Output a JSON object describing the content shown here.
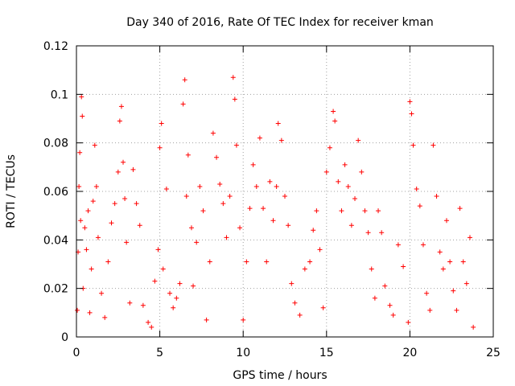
{
  "chart_data": {
    "type": "scatter",
    "title": "Day 340 of 2016, Rate Of TEC Index for receiver kman",
    "xlabel": "GPS time / hours",
    "ylabel": "ROTI / TECUs",
    "xlim": [
      0,
      25
    ],
    "ylim": [
      0,
      0.12
    ],
    "xticks": [
      0,
      5,
      10,
      15,
      20,
      25
    ],
    "xtick_labels": [
      "0",
      "5",
      "10",
      "15",
      "20",
      "25"
    ],
    "yticks": [
      0,
      0.02,
      0.04,
      0.06,
      0.08,
      0.1,
      0.12
    ],
    "ytick_labels": [
      "0",
      "0.02",
      "0.04",
      "0.06",
      "0.08",
      "0.1",
      "0.12"
    ],
    "grid": true,
    "marker": "+",
    "series": [
      {
        "color": "#ff0000",
        "points": [
          [
            0.05,
            0.011
          ],
          [
            0.1,
            0.035
          ],
          [
            0.15,
            0.062
          ],
          [
            0.2,
            0.076
          ],
          [
            0.25,
            0.048
          ],
          [
            0.3,
            0.099
          ],
          [
            0.35,
            0.091
          ],
          [
            0.4,
            0.02
          ],
          [
            0.5,
            0.045
          ],
          [
            0.6,
            0.036
          ],
          [
            0.7,
            0.052
          ],
          [
            0.8,
            0.01
          ],
          [
            0.9,
            0.028
          ],
          [
            1.0,
            0.056
          ],
          [
            1.1,
            0.079
          ],
          [
            1.2,
            0.062
          ],
          [
            1.3,
            0.041
          ],
          [
            1.5,
            0.018
          ],
          [
            1.7,
            0.008
          ],
          [
            1.9,
            0.031
          ],
          [
            2.1,
            0.047
          ],
          [
            2.3,
            0.055
          ],
          [
            2.5,
            0.068
          ],
          [
            2.6,
            0.089
          ],
          [
            2.7,
            0.095
          ],
          [
            2.8,
            0.072
          ],
          [
            2.9,
            0.057
          ],
          [
            3.0,
            0.039
          ],
          [
            3.2,
            0.014
          ],
          [
            3.4,
            0.069
          ],
          [
            3.6,
            0.055
          ],
          [
            3.8,
            0.046
          ],
          [
            4.0,
            0.013
          ],
          [
            4.3,
            0.006
          ],
          [
            4.5,
            0.004
          ],
          [
            4.7,
            0.023
          ],
          [
            4.9,
            0.036
          ],
          [
            5.0,
            0.078
          ],
          [
            5.1,
            0.088
          ],
          [
            5.2,
            0.028
          ],
          [
            5.4,
            0.061
          ],
          [
            5.6,
            0.018
          ],
          [
            5.8,
            0.012
          ],
          [
            6.0,
            0.016
          ],
          [
            6.2,
            0.022
          ],
          [
            6.4,
            0.096
          ],
          [
            6.5,
            0.106
          ],
          [
            6.6,
            0.058
          ],
          [
            6.7,
            0.075
          ],
          [
            6.9,
            0.045
          ],
          [
            7.0,
            0.021
          ],
          [
            7.2,
            0.039
          ],
          [
            7.4,
            0.062
          ],
          [
            7.6,
            0.052
          ],
          [
            7.8,
            0.007
          ],
          [
            8.0,
            0.031
          ],
          [
            8.2,
            0.084
          ],
          [
            8.4,
            0.074
          ],
          [
            8.6,
            0.063
          ],
          [
            8.8,
            0.055
          ],
          [
            9.0,
            0.041
          ],
          [
            9.2,
            0.058
          ],
          [
            9.4,
            0.107
          ],
          [
            9.5,
            0.098
          ],
          [
            9.6,
            0.079
          ],
          [
            9.8,
            0.045
          ],
          [
            10.0,
            0.007
          ],
          [
            10.2,
            0.031
          ],
          [
            10.4,
            0.053
          ],
          [
            10.6,
            0.071
          ],
          [
            10.8,
            0.062
          ],
          [
            11.0,
            0.082
          ],
          [
            11.2,
            0.053
          ],
          [
            11.4,
            0.031
          ],
          [
            11.6,
            0.064
          ],
          [
            11.8,
            0.048
          ],
          [
            12.0,
            0.062
          ],
          [
            12.1,
            0.088
          ],
          [
            12.3,
            0.081
          ],
          [
            12.5,
            0.058
          ],
          [
            12.7,
            0.046
          ],
          [
            12.9,
            0.022
          ],
          [
            13.1,
            0.014
          ],
          [
            13.4,
            0.009
          ],
          [
            13.7,
            0.028
          ],
          [
            14.0,
            0.031
          ],
          [
            14.2,
            0.044
          ],
          [
            14.4,
            0.052
          ],
          [
            14.6,
            0.036
          ],
          [
            14.8,
            0.012
          ],
          [
            15.0,
            0.068
          ],
          [
            15.2,
            0.078
          ],
          [
            15.4,
            0.093
          ],
          [
            15.5,
            0.089
          ],
          [
            15.7,
            0.064
          ],
          [
            15.9,
            0.052
          ],
          [
            16.1,
            0.071
          ],
          [
            16.3,
            0.062
          ],
          [
            16.5,
            0.046
          ],
          [
            16.7,
            0.057
          ],
          [
            16.9,
            0.081
          ],
          [
            17.1,
            0.068
          ],
          [
            17.3,
            0.052
          ],
          [
            17.5,
            0.043
          ],
          [
            17.7,
            0.028
          ],
          [
            17.9,
            0.016
          ],
          [
            18.1,
            0.052
          ],
          [
            18.3,
            0.043
          ],
          [
            18.5,
            0.021
          ],
          [
            18.8,
            0.013
          ],
          [
            19.0,
            0.009
          ],
          [
            19.3,
            0.038
          ],
          [
            19.6,
            0.029
          ],
          [
            19.9,
            0.006
          ],
          [
            20.0,
            0.097
          ],
          [
            20.1,
            0.092
          ],
          [
            20.2,
            0.079
          ],
          [
            20.4,
            0.061
          ],
          [
            20.6,
            0.054
          ],
          [
            20.8,
            0.038
          ],
          [
            21.0,
            0.018
          ],
          [
            21.2,
            0.011
          ],
          [
            21.4,
            0.079
          ],
          [
            21.6,
            0.058
          ],
          [
            21.8,
            0.035
          ],
          [
            22.0,
            0.028
          ],
          [
            22.2,
            0.048
          ],
          [
            22.4,
            0.031
          ],
          [
            22.6,
            0.019
          ],
          [
            22.8,
            0.011
          ],
          [
            23.0,
            0.053
          ],
          [
            23.2,
            0.031
          ],
          [
            23.4,
            0.022
          ],
          [
            23.6,
            0.041
          ],
          [
            23.8,
            0.004
          ]
        ]
      }
    ]
  }
}
